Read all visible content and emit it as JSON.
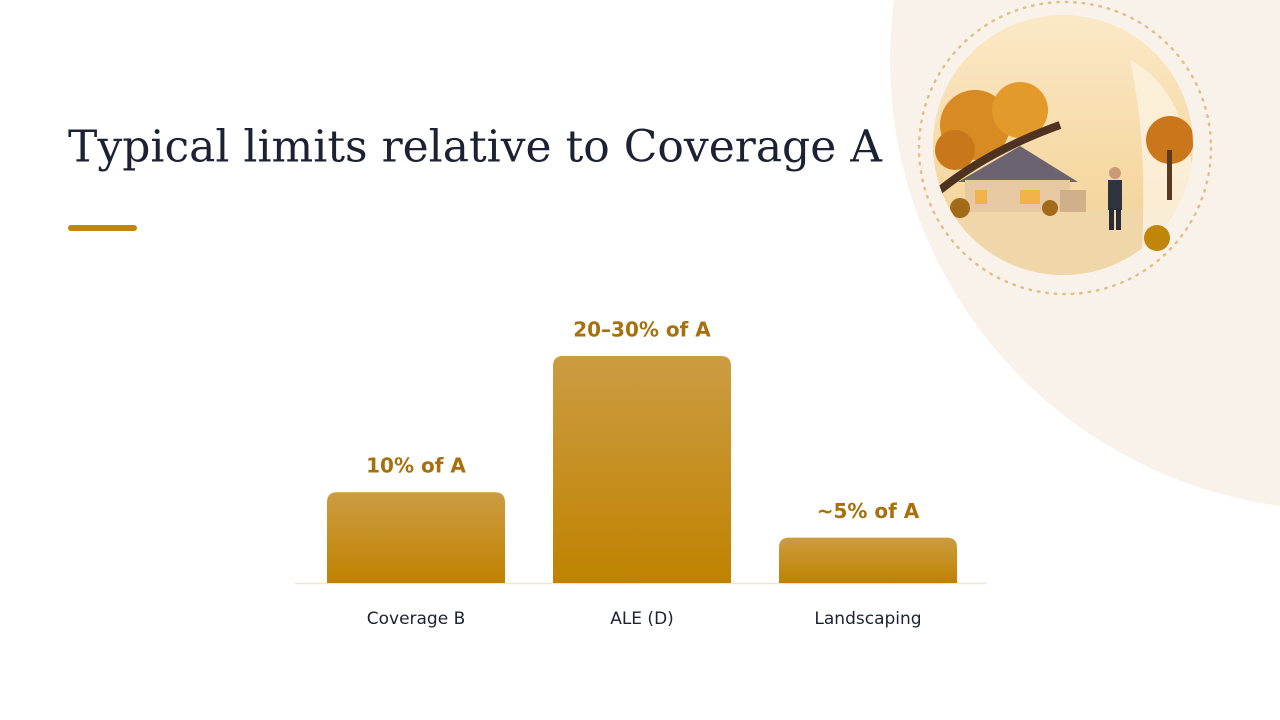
{
  "chart_data": {
    "type": "bar",
    "title": "Typical limits relative to Coverage A",
    "categories": [
      "Coverage B",
      "ALE (D)",
      "Landscaping"
    ],
    "values": [
      10,
      25,
      5
    ],
    "value_labels": [
      "10% of A",
      "20–30% of A",
      "~5% of A"
    ],
    "color": "#c58a1a"
  }
}
